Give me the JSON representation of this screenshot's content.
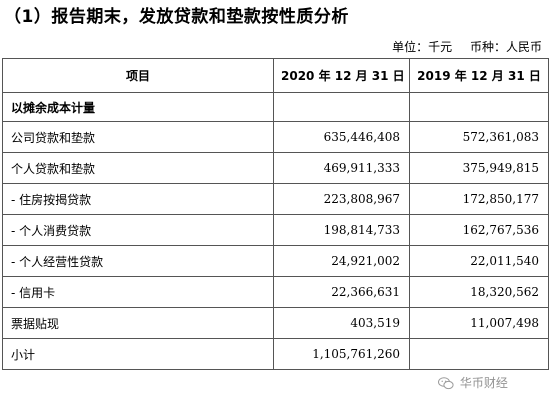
{
  "title": "（1）报告期末，发放贷款和垫款按性质分析",
  "unit_line": {
    "unit": "单位：千元",
    "currency": "币种：人民币"
  },
  "table": {
    "headers": [
      "项目",
      "2020 年 12 月 31 日",
      "2019 年 12 月 31 日"
    ],
    "section_label": "以摊余成本计量",
    "rows": [
      {
        "label": "公司贷款和垫款",
        "v2020": "635,446,408",
        "v2019": "572,361,083"
      },
      {
        "label": "个人贷款和垫款",
        "v2020": "469,911,333",
        "v2019": "375,949,815"
      },
      {
        "label": "- 住房按揭贷款",
        "v2020": "223,808,967",
        "v2019": "172,850,177"
      },
      {
        "label": "- 个人消费贷款",
        "v2020": "198,814,733",
        "v2019": "162,767,536"
      },
      {
        "label": "- 个人经营性贷款",
        "v2020": "24,921,002",
        "v2019": "22,011,540"
      },
      {
        "label": "- 信用卡",
        "v2020": "22,366,631",
        "v2019": "18,320,562"
      },
      {
        "label": "票据贴现",
        "v2020": "403,519",
        "v2019": "11,007,498"
      },
      {
        "label": "小计",
        "v2020": "1,105,761,260",
        "v2019": ""
      }
    ]
  },
  "watermark": {
    "text": "华币财经",
    "icon": "wechat-bubble-icon"
  }
}
